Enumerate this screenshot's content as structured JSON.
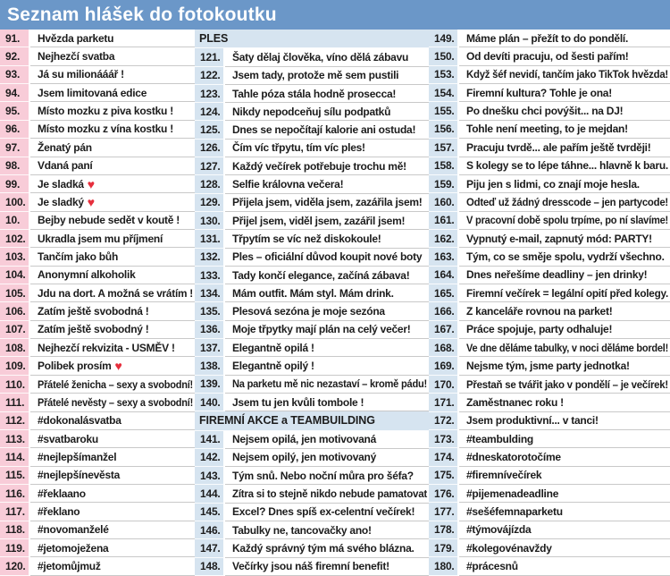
{
  "title": "Seznam hlášek do fotokoutku",
  "colors": {
    "header_bg": "#6b97c8",
    "num_pink": "#f8ccd8",
    "num_blue": "#d6e4f0",
    "section_bg": "#d6e4f0",
    "row_border": "#c9c9c9",
    "text": "#1c1c1c",
    "heart": "#e62e3c"
  },
  "heart_glyph": "♥",
  "columns": [
    {
      "name": "wedding",
      "num_color": "pink",
      "rows": [
        {
          "num": "91.",
          "text": "Hvězda parketu"
        },
        {
          "num": "92.",
          "text": "Nejhezčí svatba"
        },
        {
          "num": "93.",
          "text": "Já su milionááář !"
        },
        {
          "num": "94.",
          "text": "Jsem limitovaná edice"
        },
        {
          "num": "95.",
          "text": "Místo mozku z piva kostku !"
        },
        {
          "num": "96.",
          "text": "Místo mozku z vína kostku !"
        },
        {
          "num": "97.",
          "text": "Ženatý pán"
        },
        {
          "num": "98.",
          "text": "Vdaná paní"
        },
        {
          "num": "99.",
          "text": "Je sladká",
          "heart": true
        },
        {
          "num": "100.",
          "text": "Je sladký",
          "heart": true
        },
        {
          "num": "10.",
          "text": "Bejby nebude sedět v koutě !"
        },
        {
          "num": "102.",
          "text": "Ukradla jsem mu příjmení"
        },
        {
          "num": "103.",
          "text": "Tančím jako bůh"
        },
        {
          "num": "104.",
          "text": "Anonymní alkoholik"
        },
        {
          "num": "105.",
          "text": "Jdu na dort. A možná se vrátím !"
        },
        {
          "num": "106.",
          "text": "Zatím ještě svobodná !"
        },
        {
          "num": "107.",
          "text": "Zatím ještě svobodný !"
        },
        {
          "num": "108.",
          "text": "Nejhezčí rekvizita - USMĚV !"
        },
        {
          "num": "109.",
          "text": "Polibek prosím",
          "heart": true
        },
        {
          "num": "110.",
          "text": "Přátelé ženicha – sexy a svobodní!"
        },
        {
          "num": "111.",
          "text": "Přátelé nevěsty – sexy a svobodní!"
        },
        {
          "num": "112.",
          "text": "#dokonalásvatba"
        },
        {
          "num": "113.",
          "text": "#svatbaroku"
        },
        {
          "num": "114.",
          "text": "#nejlepšímanžel"
        },
        {
          "num": "115.",
          "text": "#nejlepšínevěsta"
        },
        {
          "num": "116.",
          "text": "#řeklaano"
        },
        {
          "num": "117.",
          "text": "#řeklano"
        },
        {
          "num": "118.",
          "text": "#novomanželé"
        },
        {
          "num": "119.",
          "text": "#jetomoježena"
        },
        {
          "num": "120.",
          "text": "#jetomůjmuž"
        }
      ]
    },
    {
      "name": "ples-and-corporate",
      "num_color": "blue",
      "rows": [
        {
          "section": "PLES"
        },
        {
          "num": "121.",
          "text": "Šaty dělaj člověka, víno dělá zábavu"
        },
        {
          "num": "122.",
          "text": "Jsem tady, protože mě sem pustili"
        },
        {
          "num": "123.",
          "text": "Tahle póza stála hodně prosecca!"
        },
        {
          "num": "124.",
          "text": "Nikdy nepodceňuj sílu podpatků"
        },
        {
          "num": "125.",
          "text": "Dnes se nepočítají kalorie ani ostuda!"
        },
        {
          "num": "126.",
          "text": "Čím víc třpytu, tím víc ples!"
        },
        {
          "num": "127.",
          "text": "Každý večírek potřebuje trochu mě!"
        },
        {
          "num": "128.",
          "text": "Selfie královna večera!"
        },
        {
          "num": "129.",
          "text": "Přijela jsem, viděla jsem, zazářila jsem!"
        },
        {
          "num": "130.",
          "text": "Přijel jsem, viděl jsem, zazářil jsem!"
        },
        {
          "num": "131.",
          "text": "Třpytím se víc než diskokoule!"
        },
        {
          "num": "132.",
          "text": "Ples – oficiální důvod koupit nové boty"
        },
        {
          "num": "133.",
          "text": "Tady končí elegance, začíná zábava!"
        },
        {
          "num": "134.",
          "text": "Mám outfit. Mám styl. Mám drink."
        },
        {
          "num": "135.",
          "text": "Plesová sezóna je moje sezóna"
        },
        {
          "num": "136.",
          "text": "Moje třpytky mají plán na celý večer!"
        },
        {
          "num": "137.",
          "text": "Elegantně opilá !"
        },
        {
          "num": "138.",
          "text": "Elegantně opilý !"
        },
        {
          "num": "139.",
          "text": "Na parketu mě nic nezastaví – kromě pádu!"
        },
        {
          "num": "140.",
          "text": "Jsem tu jen kvůli tombole !"
        },
        {
          "section": "FIREMNÍ AKCE a TEAMBUILDING"
        },
        {
          "num": "141.",
          "text": "Nejsem opilá, jen motivovaná"
        },
        {
          "num": "142.",
          "text": "Nejsem opilý, jen motivovaný"
        },
        {
          "num": "143.",
          "text": "Tým snů. Nebo noční můra pro šéfa?"
        },
        {
          "num": "144.",
          "text": "Zítra si to stejně nikdo nebude pamatovat"
        },
        {
          "num": "145.",
          "text": "Excel? Dnes spíš ex-celentní večírek!"
        },
        {
          "num": "146.",
          "text": "Tabulky ne, tancovačky ano!"
        },
        {
          "num": "147.",
          "text": "Každý správný tým má svého blázna."
        },
        {
          "num": "148.",
          "text": "Večírky jsou náš firemní benefit!"
        }
      ]
    },
    {
      "name": "corporate-continued",
      "num_color": "blue",
      "rows": [
        {
          "num": "149.",
          "text": "Máme plán – přežít to do pondělí."
        },
        {
          "num": "150.",
          "text": "Od devíti pracuju, od šesti pařím!"
        },
        {
          "num": "153.",
          "text": "Když šéf nevidí, tančím jako TikTok hvězda!"
        },
        {
          "num": "154.",
          "text": "Firemní kultura? Tohle je ona!"
        },
        {
          "num": "155.",
          "text": "Po dnešku chci povýšit... na DJ!"
        },
        {
          "num": "156.",
          "text": "Tohle není meeting, to je mejdan!"
        },
        {
          "num": "157.",
          "text": "Pracuju tvrdě... ale pařím ještě tvrději!"
        },
        {
          "num": "158.",
          "text": "S kolegy se to lépe táhne... hlavně k baru."
        },
        {
          "num": "159.",
          "text": "Piju jen s lidmi, co znají moje hesla."
        },
        {
          "num": "160.",
          "text": "Odteď už žádný dresscode – jen partycode!"
        },
        {
          "num": "161.",
          "text": "V pracovní době spolu trpíme, po ní slavíme!"
        },
        {
          "num": "162.",
          "text": "Vypnutý e-mail, zapnutý mód: PARTY!"
        },
        {
          "num": "163.",
          "text": "Tým, co se směje spolu, vydrží všechno."
        },
        {
          "num": "164.",
          "text": "Dnes neřešíme deadliny – jen drinky!"
        },
        {
          "num": "165.",
          "text": "Firemní večírek = legální opití před kolegy."
        },
        {
          "num": "166.",
          "text": "Z kanceláře rovnou na parket!"
        },
        {
          "num": "167.",
          "text": "Práce spojuje, party odhaluje!"
        },
        {
          "num": "168.",
          "text": "Ve dne děláme tabulky, v noci děláme bordel!"
        },
        {
          "num": "169.",
          "text": "Nejsme tým, jsme party jednotka!"
        },
        {
          "num": "170.",
          "text": "Přestaň se tvářit jako v pondělí – je večírek!"
        },
        {
          "num": "171.",
          "text": "Zaměstnanec roku !"
        },
        {
          "num": "172.",
          "text": "Jsem produktivní... v tanci!"
        },
        {
          "num": "173.",
          "text": "#teambulding"
        },
        {
          "num": "174.",
          "text": "#dneskatorotočíme"
        },
        {
          "num": "175.",
          "text": "#firemnívečírek"
        },
        {
          "num": "176.",
          "text": "#pijemenadeadline"
        },
        {
          "num": "177.",
          "text": "#sešéfemnaparketu"
        },
        {
          "num": "178.",
          "text": "#týmovájízda"
        },
        {
          "num": "179.",
          "text": "#kolegovénavždy"
        },
        {
          "num": "180.",
          "text": "#prácesnů"
        }
      ]
    }
  ]
}
